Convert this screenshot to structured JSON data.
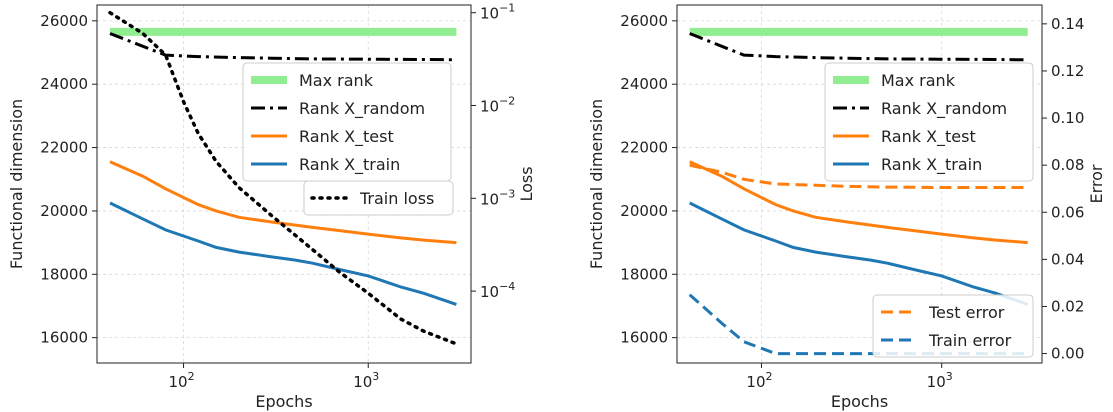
{
  "chart_data": [
    {
      "type": "line",
      "xlabel": "Epochs",
      "ylabel": "Functional dimension",
      "y2label": "Loss",
      "xscale": "log",
      "xlim": [
        34,
        3600
      ],
      "ylim": [
        15200,
        26500
      ],
      "y2scale": "log",
      "y2lim": [
        1.68e-05,
        0.121
      ],
      "xticks": [
        {
          "value": 100,
          "base": "10",
          "exp": "2"
        },
        {
          "value": 1000,
          "base": "10",
          "exp": "3"
        }
      ],
      "yticks": [
        16000,
        18000,
        20000,
        22000,
        24000,
        26000
      ],
      "y2ticks": [
        {
          "value": 0.0001,
          "base": "10",
          "exp": "−4"
        },
        {
          "value": 0.001,
          "base": "10",
          "exp": "−3"
        },
        {
          "value": 0.01,
          "base": "10",
          "exp": "−2"
        },
        {
          "value": 0.1,
          "base": "10",
          "exp": "−1"
        }
      ],
      "grid": true,
      "series": [
        {
          "name": "Max rank",
          "color": "#90ee90",
          "style": "solid",
          "width": 8,
          "axis": "left",
          "x": [
            40,
            3000
          ],
          "y": [
            25650,
            25650
          ]
        },
        {
          "name": "Rank X_random",
          "color": "#000000",
          "style": "dashdot",
          "width": 3,
          "axis": "left",
          "x": [
            40,
            60,
            80,
            120,
            200,
            300,
            500,
            1000,
            2000,
            3000
          ],
          "y": [
            25600,
            25200,
            24920,
            24870,
            24840,
            24820,
            24800,
            24790,
            24780,
            24770
          ]
        },
        {
          "name": "Rank X_test",
          "color": "#ff7f0e",
          "style": "solid",
          "width": 3,
          "axis": "left",
          "x": [
            40,
            60,
            80,
            120,
            150,
            200,
            300,
            500,
            700,
            1000,
            1500,
            2000,
            3000
          ],
          "y": [
            21550,
            21100,
            20700,
            20200,
            20000,
            19800,
            19650,
            19480,
            19380,
            19270,
            19150,
            19080,
            19000
          ]
        },
        {
          "name": "Rank X_train",
          "color": "#1f77b4",
          "style": "solid",
          "width": 3,
          "axis": "left",
          "x": [
            40,
            60,
            80,
            120,
            150,
            200,
            300,
            400,
            500,
            700,
            1000,
            1500,
            2000,
            3000
          ],
          "y": [
            20250,
            19750,
            19400,
            19050,
            18850,
            18700,
            18550,
            18450,
            18350,
            18150,
            17950,
            17600,
            17400,
            17050
          ]
        },
        {
          "name": "Train loss",
          "color": "#000000",
          "style": "dotted",
          "width": 3.5,
          "axis": "right",
          "x": [
            40,
            60,
            80,
            100,
            120,
            150,
            200,
            300,
            500,
            700,
            1000,
            1500,
            2000,
            3000
          ],
          "y": [
            0.1,
            0.06,
            0.035,
            0.011,
            0.005,
            0.0025,
            0.0013,
            0.00065,
            0.00028,
            0.00016,
            9.5e-05,
            5e-05,
            3.7e-05,
            2.7e-05
          ]
        }
      ],
      "legends": [
        {
          "placement": "center-right",
          "entries": [
            "Max rank",
            "Rank X_random",
            "Rank X_test",
            "Rank X_train"
          ]
        },
        {
          "placement": "right",
          "entries": [
            "Train loss"
          ]
        }
      ]
    },
    {
      "type": "line",
      "xlabel": "Epochs",
      "ylabel": "Functional dimension",
      "y2label": "Error",
      "xscale": "log",
      "xlim": [
        34,
        3600
      ],
      "ylim": [
        15200,
        26500
      ],
      "y2scale": "linear",
      "y2lim": [
        -0.004,
        0.148
      ],
      "xticks": [
        {
          "value": 100,
          "base": "10",
          "exp": "2"
        },
        {
          "value": 1000,
          "base": "10",
          "exp": "3"
        }
      ],
      "yticks": [
        16000,
        18000,
        20000,
        22000,
        24000,
        26000
      ],
      "y2ticks": [
        "0.00",
        "0.02",
        "0.04",
        "0.06",
        "0.08",
        "0.10",
        "0.12",
        "0.14"
      ],
      "grid": true,
      "series": [
        {
          "name": "Max rank",
          "color": "#90ee90",
          "style": "solid",
          "width": 8,
          "axis": "left",
          "x": [
            40,
            3000
          ],
          "y": [
            25650,
            25650
          ]
        },
        {
          "name": "Rank X_random",
          "color": "#000000",
          "style": "dashdot",
          "width": 3,
          "axis": "left",
          "x": [
            40,
            60,
            80,
            120,
            200,
            300,
            500,
            1000,
            2000,
            3000
          ],
          "y": [
            25600,
            25200,
            24920,
            24870,
            24840,
            24820,
            24800,
            24790,
            24780,
            24770
          ]
        },
        {
          "name": "Rank X_test",
          "color": "#ff7f0e",
          "style": "solid",
          "width": 3,
          "axis": "left",
          "x": [
            40,
            60,
            80,
            120,
            150,
            200,
            300,
            500,
            700,
            1000,
            1500,
            2000,
            3000
          ],
          "y": [
            21550,
            21100,
            20700,
            20200,
            20000,
            19800,
            19650,
            19480,
            19380,
            19270,
            19150,
            19080,
            19000
          ]
        },
        {
          "name": "Rank X_train",
          "color": "#1f77b4",
          "style": "solid",
          "width": 3,
          "axis": "left",
          "x": [
            40,
            60,
            80,
            120,
            150,
            200,
            300,
            400,
            500,
            700,
            1000,
            1500,
            2000,
            3000
          ],
          "y": [
            20250,
            19750,
            19400,
            19050,
            18850,
            18700,
            18550,
            18450,
            18350,
            18150,
            17950,
            17600,
            17400,
            17050
          ]
        },
        {
          "name": "Test error",
          "color": "#ff7f0e",
          "style": "dashed",
          "width": 3,
          "axis": "right",
          "x": [
            40,
            60,
            80,
            120,
            200,
            300,
            500,
            1000,
            2000,
            3000
          ],
          "y": [
            0.08,
            0.077,
            0.074,
            0.072,
            0.0715,
            0.071,
            0.0707,
            0.0705,
            0.0705,
            0.0705
          ]
        },
        {
          "name": "Train error",
          "color": "#1f77b4",
          "style": "dashed",
          "width": 3,
          "axis": "right",
          "x": [
            40,
            60,
            80,
            120,
            200,
            300,
            500,
            1000,
            2000,
            3000
          ],
          "y": [
            0.025,
            0.013,
            0.005,
            0.0,
            0.0,
            0.0,
            0.0,
            0.0,
            0.0,
            0.0
          ]
        }
      ],
      "legends": [
        {
          "placement": "center-right",
          "entries": [
            "Max rank",
            "Rank X_random",
            "Rank X_test",
            "Rank X_train"
          ]
        },
        {
          "placement": "lower-right",
          "entries": [
            "Test error",
            "Train error"
          ]
        }
      ]
    }
  ]
}
